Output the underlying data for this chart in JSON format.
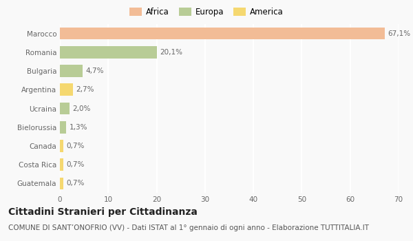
{
  "categories": [
    "Marocco",
    "Romania",
    "Bulgaria",
    "Argentina",
    "Ucraina",
    "Bielorussia",
    "Canada",
    "Costa Rica",
    "Guatemala"
  ],
  "values": [
    67.1,
    20.1,
    4.7,
    2.7,
    2.0,
    1.3,
    0.7,
    0.7,
    0.7
  ],
  "labels": [
    "67,1%",
    "20,1%",
    "4,7%",
    "2,7%",
    "2,0%",
    "1,3%",
    "0,7%",
    "0,7%",
    "0,7%"
  ],
  "colors": [
    "#F2BC96",
    "#B8CC96",
    "#B8CC96",
    "#F5D870",
    "#B8CC96",
    "#B8CC96",
    "#F5D870",
    "#F5D870",
    "#F5D870"
  ],
  "legend": [
    {
      "label": "Africa",
      "color": "#F2BC96"
    },
    {
      "label": "Europa",
      "color": "#B8CC96"
    },
    {
      "label": "America",
      "color": "#F5D870"
    }
  ],
  "title": "Cittadini Stranieri per Cittadinanza",
  "subtitle": "COMUNE DI SANT’ONOFRIO (VV) - Dati ISTAT al 1° gennaio di ogni anno - Elaborazione TUTTITALIA.IT",
  "xlim": [
    0,
    70
  ],
  "xticks": [
    0,
    10,
    20,
    30,
    40,
    50,
    60,
    70
  ],
  "background_color": "#f9f9f9",
  "grid_color": "#ffffff",
  "title_fontsize": 10,
  "subtitle_fontsize": 7.5,
  "label_fontsize": 7.5,
  "tick_fontsize": 7.5,
  "legend_fontsize": 8.5
}
